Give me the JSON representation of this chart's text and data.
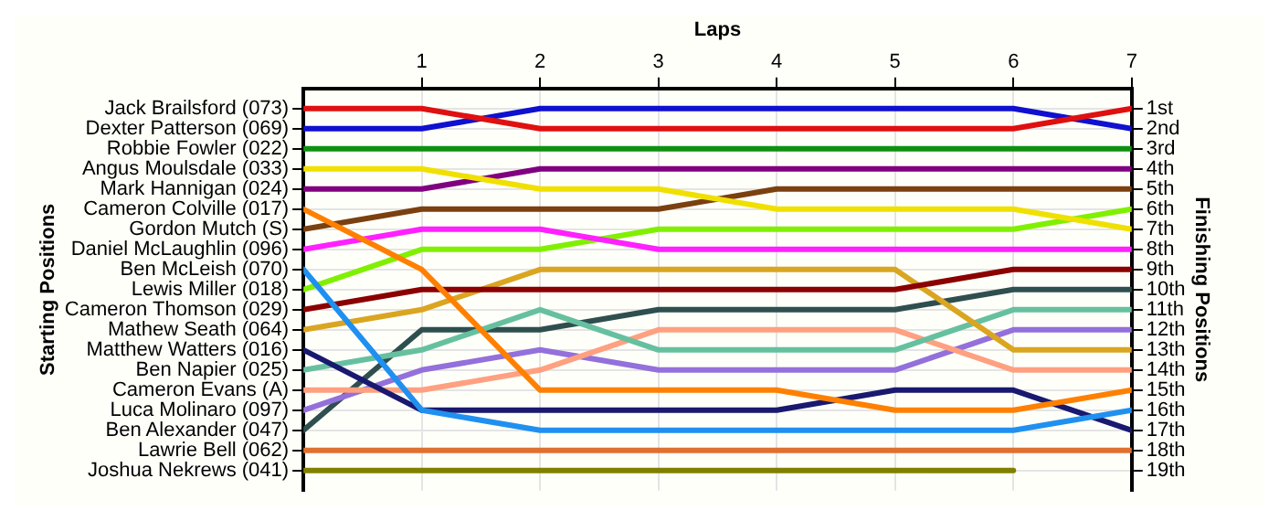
{
  "chart_data": {
    "type": "line",
    "xlabel": "Laps",
    "annotations": [
      "Starting Positions"
    ],
    "y2label": "Finishing Positions",
    "x": [
      0,
      1,
      2,
      3,
      4,
      5,
      6,
      7
    ],
    "xlim": [
      0,
      7
    ],
    "xticks": [
      1,
      2,
      3,
      4,
      5,
      6,
      7
    ],
    "y2lim": [
      20,
      0
    ],
    "y2ticks": [
      {
        "value": 1,
        "label": "1st"
      },
      {
        "value": 2,
        "label": "2nd"
      },
      {
        "value": 3,
        "label": "3rd"
      },
      {
        "value": 4,
        "label": "4th"
      },
      {
        "value": 5,
        "label": "5th"
      },
      {
        "value": 6,
        "label": "6th"
      },
      {
        "value": 7,
        "label": "7th"
      },
      {
        "value": 8,
        "label": "8th"
      },
      {
        "value": 9,
        "label": "9th"
      },
      {
        "value": 10,
        "label": "10th"
      },
      {
        "value": 11,
        "label": "11th"
      },
      {
        "value": 12,
        "label": "12th"
      },
      {
        "value": 13,
        "label": "13th"
      },
      {
        "value": 14,
        "label": "14th"
      },
      {
        "value": 15,
        "label": "15th"
      },
      {
        "value": 16,
        "label": "16th"
      },
      {
        "value": 17,
        "label": "17th"
      },
      {
        "value": 18,
        "label": "18th"
      },
      {
        "value": 19,
        "label": "19th"
      }
    ],
    "grid": true,
    "marker": "none",
    "line_style": "solid",
    "series": [
      {
        "name": "Jack Brailsford (073)",
        "axis": "y2",
        "color": "#e01010",
        "values": [
          1,
          1,
          2,
          2,
          2,
          2,
          2,
          1
        ]
      },
      {
        "name": "Dexter Patterson (069)",
        "axis": "y2",
        "color": "#1010d0",
        "values": [
          2,
          2,
          1,
          1,
          1,
          1,
          1,
          2
        ]
      },
      {
        "name": "Robbie Fowler (022)",
        "axis": "y2",
        "color": "#109010",
        "values": [
          3,
          3,
          3,
          3,
          3,
          3,
          3,
          3
        ]
      },
      {
        "name": "Angus Moulsdale (033)",
        "axis": "y2",
        "color": "#f0e000",
        "values": [
          4,
          4,
          5,
          5,
          6,
          6,
          6,
          7
        ]
      },
      {
        "name": "Mark Hannigan (024)",
        "axis": "y2",
        "color": "#800080",
        "values": [
          5,
          5,
          4,
          4,
          4,
          4,
          4,
          4
        ]
      },
      {
        "name": "Cameron Colville (017)",
        "axis": "y2",
        "color": "#ff8000",
        "values": [
          6,
          9,
          15,
          15,
          15,
          16,
          16,
          15
        ]
      },
      {
        "name": "Gordon Mutch (S)",
        "axis": "y2",
        "color": "#7b4010",
        "values": [
          7,
          6,
          6,
          6,
          5,
          5,
          5,
          5
        ]
      },
      {
        "name": "Daniel McLaughlin (096)",
        "axis": "y2",
        "color": "#ff20ff",
        "values": [
          8,
          7,
          7,
          8,
          8,
          8,
          8,
          8
        ]
      },
      {
        "name": "Ben McLeish (070)",
        "axis": "y2",
        "color": "#2090f0",
        "values": [
          9,
          16,
          17,
          17,
          17,
          17,
          17,
          16
        ]
      },
      {
        "name": "Lewis Miller (018)",
        "axis": "y2",
        "color": "#80f000",
        "values": [
          10,
          8,
          8,
          7,
          7,
          7,
          7,
          6
        ]
      },
      {
        "name": "Cameron Thomson (029)",
        "axis": "y2",
        "color": "#8b0000",
        "values": [
          11,
          10,
          10,
          10,
          10,
          10,
          9,
          9
        ]
      },
      {
        "name": "Mathew Seath (064)",
        "axis": "y2",
        "color": "#daa520",
        "values": [
          12,
          11,
          9,
          9,
          9,
          9,
          13,
          13
        ]
      },
      {
        "name": "Matthew Watters (016)",
        "axis": "y2",
        "color": "#191970",
        "values": [
          13,
          16,
          16,
          16,
          16,
          15,
          15,
          17
        ]
      },
      {
        "name": "Ben Napier (025)",
        "axis": "y2",
        "color": "#66c0a0",
        "values": [
          14,
          13,
          11,
          13,
          13,
          13,
          11,
          11
        ]
      },
      {
        "name": "Cameron Evans (A)",
        "axis": "y2",
        "color": "#ffa080",
        "values": [
          15,
          15,
          14,
          12,
          12,
          12,
          14,
          14
        ]
      },
      {
        "name": "Luca Molinaro (097)",
        "axis": "y2",
        "color": "#9370db",
        "values": [
          16,
          14,
          13,
          14,
          14,
          14,
          12,
          12
        ]
      },
      {
        "name": "Ben Alexander (047)",
        "axis": "y2",
        "color": "#2f4f4f",
        "values": [
          17,
          12,
          12,
          11,
          11,
          11,
          10,
          10
        ]
      },
      {
        "name": "Lawrie Bell (062)",
        "axis": "y2",
        "color": "#e07030",
        "values": [
          18,
          18,
          18,
          18,
          18,
          18,
          18,
          18
        ]
      },
      {
        "name": "Joshua Nekrews (041)",
        "axis": "y2",
        "color": "#808000",
        "values": [
          19,
          19,
          19,
          19,
          19,
          19,
          19,
          null
        ]
      }
    ]
  }
}
